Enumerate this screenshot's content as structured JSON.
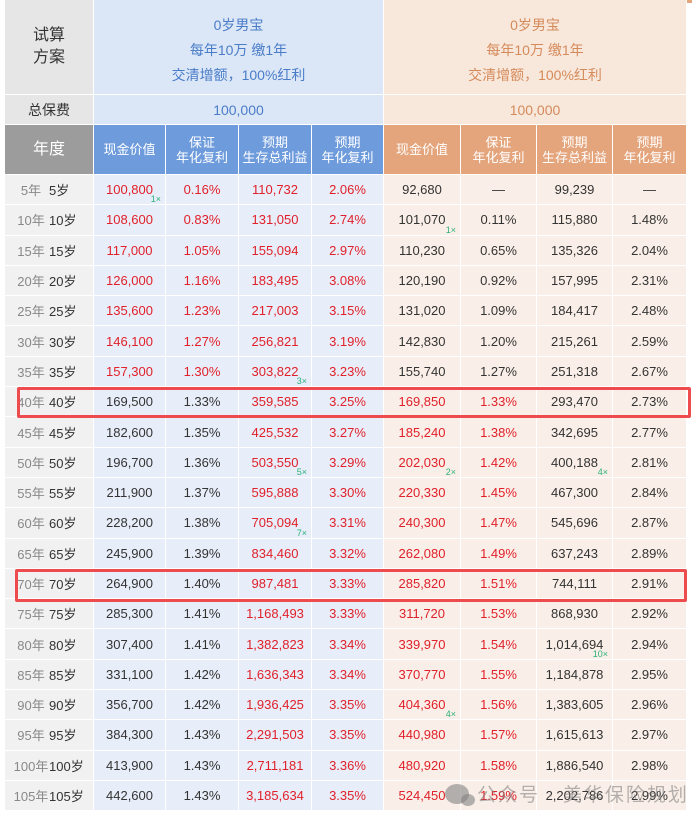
{
  "header": {
    "plan_label": "试算\n方案",
    "plan_label_line1": "试算",
    "plan_label_line2": "方案",
    "premium_label": "总保费",
    "year_label": "年度"
  },
  "plans": [
    {
      "theme": "blue",
      "line1": "0岁男宝",
      "line2": "每年10万 缴1年",
      "line3": "交清增额，100%红利",
      "premium": "100,000",
      "columns": [
        "现金价值",
        "保证\n年化复利",
        "预期\n生存总利益",
        "预期\n年化复利"
      ],
      "col_h": [
        [
          "现金价值"
        ],
        [
          "保证",
          "年化复利"
        ],
        [
          "预期",
          "生存总利益"
        ],
        [
          "预期",
          "年化复利"
        ]
      ]
    },
    {
      "theme": "orange",
      "line1": "0岁男宝",
      "line2": "每年10万 缴1年",
      "line3": "交清增额，100%红利",
      "premium": "100,000",
      "col_h": [
        [
          "现金价值"
        ],
        [
          "保证",
          "年化复利"
        ],
        [
          "预期",
          "生存总利益"
        ],
        [
          "预期",
          "年化复利"
        ]
      ]
    }
  ],
  "rows": [
    {
      "year": "5年",
      "age": "5岁",
      "a": [
        "100,800",
        "0.16%",
        "110,732",
        "2.06%"
      ],
      "b": [
        "92,680",
        "—",
        "99,239",
        "—"
      ],
      "a_tag": {
        "0": "1×"
      },
      "b_tag": {}
    },
    {
      "year": "10年",
      "age": "10岁",
      "a": [
        "108,600",
        "0.83%",
        "131,050",
        "2.74%"
      ],
      "b": [
        "101,070",
        "0.11%",
        "115,880",
        "1.48%"
      ],
      "a_tag": {},
      "b_tag": {
        "0": "1×"
      }
    },
    {
      "year": "15年",
      "age": "15岁",
      "a": [
        "117,000",
        "1.05%",
        "155,094",
        "2.97%"
      ],
      "b": [
        "110,230",
        "0.65%",
        "135,326",
        "2.04%"
      ],
      "a_tag": {},
      "b_tag": {}
    },
    {
      "year": "20年",
      "age": "20岁",
      "a": [
        "126,000",
        "1.16%",
        "183,495",
        "3.08%"
      ],
      "b": [
        "120,190",
        "0.92%",
        "157,995",
        "2.31%"
      ],
      "a_tag": {},
      "b_tag": {}
    },
    {
      "year": "25年",
      "age": "25岁",
      "a": [
        "135,600",
        "1.23%",
        "217,003",
        "3.15%"
      ],
      "b": [
        "131,020",
        "1.09%",
        "184,417",
        "2.48%"
      ],
      "a_tag": {},
      "b_tag": {}
    },
    {
      "year": "30年",
      "age": "30岁",
      "a": [
        "146,100",
        "1.27%",
        "256,821",
        "3.19%"
      ],
      "b": [
        "142,830",
        "1.20%",
        "215,261",
        "2.59%"
      ],
      "a_tag": {},
      "b_tag": {}
    },
    {
      "year": "35年",
      "age": "35岁",
      "a": [
        "157,300",
        "1.30%",
        "303,822",
        "3.23%"
      ],
      "b": [
        "155,740",
        "1.27%",
        "251,318",
        "2.67%"
      ],
      "a_tag": {
        "2": "3×"
      },
      "b_tag": {}
    },
    {
      "year": "40年",
      "age": "40岁",
      "a": [
        "169,500",
        "1.33%",
        "359,585",
        "3.25%"
      ],
      "b": [
        "169,850",
        "1.33%",
        "293,470",
        "2.73%"
      ],
      "a_tag": {},
      "b_tag": {}
    },
    {
      "year": "45年",
      "age": "45岁",
      "a": [
        "182,600",
        "1.35%",
        "425,532",
        "3.27%"
      ],
      "b": [
        "185,240",
        "1.38%",
        "342,695",
        "2.77%"
      ],
      "a_tag": {},
      "b_tag": {}
    },
    {
      "year": "50年",
      "age": "50岁",
      "a": [
        "196,700",
        "1.36%",
        "503,550",
        "3.29%"
      ],
      "b": [
        "202,030",
        "1.42%",
        "400,188",
        "2.81%"
      ],
      "a_tag": {
        "2": "5×"
      },
      "b_tag": {
        "0": "2×",
        "2": "4×"
      }
    },
    {
      "year": "55年",
      "age": "55岁",
      "a": [
        "211,900",
        "1.37%",
        "595,888",
        "3.30%"
      ],
      "b": [
        "220,330",
        "1.45%",
        "467,300",
        "2.84%"
      ],
      "a_tag": {},
      "b_tag": {}
    },
    {
      "year": "60年",
      "age": "60岁",
      "a": [
        "228,200",
        "1.38%",
        "705,094",
        "3.31%"
      ],
      "b": [
        "240,300",
        "1.47%",
        "545,696",
        "2.87%"
      ],
      "a_tag": {
        "2": "7×"
      },
      "b_tag": {}
    },
    {
      "year": "65年",
      "age": "65岁",
      "a": [
        "245,900",
        "1.39%",
        "834,460",
        "3.32%"
      ],
      "b": [
        "262,080",
        "1.49%",
        "637,243",
        "2.89%"
      ],
      "a_tag": {},
      "b_tag": {}
    },
    {
      "year": "70年",
      "age": "70岁",
      "a": [
        "264,900",
        "1.40%",
        "987,481",
        "3.33%"
      ],
      "b": [
        "285,820",
        "1.51%",
        "744,111",
        "2.91%"
      ],
      "a_tag": {},
      "b_tag": {}
    },
    {
      "year": "75年",
      "age": "75岁",
      "a": [
        "285,300",
        "1.41%",
        "1,168,493",
        "3.33%"
      ],
      "b": [
        "311,720",
        "1.53%",
        "868,930",
        "2.92%"
      ],
      "a_tag": {},
      "b_tag": {}
    },
    {
      "year": "80年",
      "age": "80岁",
      "a": [
        "307,400",
        "1.41%",
        "1,382,823",
        "3.34%"
      ],
      "b": [
        "339,970",
        "1.54%",
        "1,014,694",
        "2.94%"
      ],
      "a_tag": {},
      "b_tag": {
        "2": "10×"
      }
    },
    {
      "year": "85年",
      "age": "85岁",
      "a": [
        "331,100",
        "1.42%",
        "1,636,343",
        "3.34%"
      ],
      "b": [
        "370,770",
        "1.55%",
        "1,184,878",
        "2.95%"
      ],
      "a_tag": {},
      "b_tag": {}
    },
    {
      "year": "90年",
      "age": "90岁",
      "a": [
        "356,700",
        "1.42%",
        "1,936,425",
        "3.35%"
      ],
      "b": [
        "404,360",
        "1.56%",
        "1,383,605",
        "2.96%"
      ],
      "a_tag": {},
      "b_tag": {
        "0": "4×"
      }
    },
    {
      "year": "95年",
      "age": "95岁",
      "a": [
        "384,300",
        "1.43%",
        "2,291,503",
        "3.35%"
      ],
      "b": [
        "440,980",
        "1.57%",
        "1,615,613",
        "2.97%"
      ],
      "a_tag": {},
      "b_tag": {}
    },
    {
      "year": "100年",
      "age": "100岁",
      "a": [
        "413,900",
        "1.43%",
        "2,711,181",
        "3.36%"
      ],
      "b": [
        "480,920",
        "1.58%",
        "1,886,540",
        "2.98%"
      ],
      "a_tag": {},
      "b_tag": {}
    },
    {
      "year": "105年",
      "age": "105岁",
      "a": [
        "442,600",
        "1.43%",
        "3,185,634",
        "3.35%"
      ],
      "b": [
        "524,450",
        "1.59%",
        "2,202,786",
        "2.99%"
      ],
      "a_tag": {},
      "b_tag": {}
    }
  ],
  "red_cells": {
    "a": {
      "0": [
        0,
        1,
        2,
        3,
        4,
        5,
        6
      ],
      "1": [
        0,
        1,
        2,
        3,
        4,
        5,
        6
      ],
      "2": "all",
      "3": "all"
    },
    "b": {
      "0": [
        7,
        8,
        9,
        10,
        11,
        12,
        13,
        14,
        15,
        16,
        17,
        18,
        19,
        20
      ],
      "1": [
        7,
        8,
        9,
        10,
        11,
        12,
        13,
        14,
        15,
        16,
        17,
        18,
        19,
        20
      ],
      "2": [],
      "3": []
    }
  },
  "highlighted_rows": [
    "40年",
    "70年"
  ],
  "colors": {
    "blue_header": "#6e9bdc",
    "blue_body": "#e8eef9",
    "orange_header": "#e4a57c",
    "orange_body": "#faefe8",
    "red_value": "#e0202a",
    "highlight_border": "#ee4b4f",
    "multiplier_tag": "#2bb07a"
  },
  "watermark": {
    "text": "公众号 · 美华保险规划",
    "icon": "wechat-icon"
  }
}
